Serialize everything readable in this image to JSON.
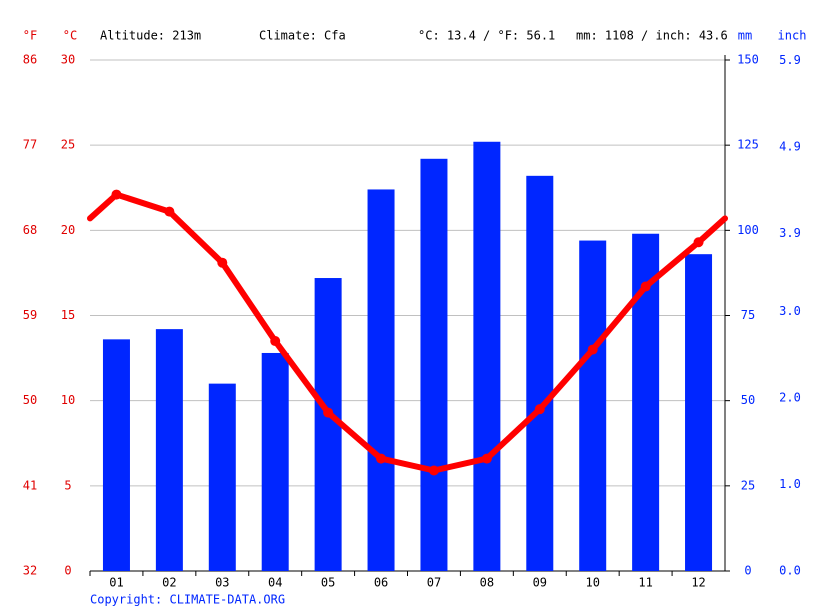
{
  "chart_data": {
    "type": "bar-line",
    "header": [
      "Altitude: 213m",
      "Climate: Cfa",
      "°C: 13.4 / °F: 56.1",
      "mm: 1108 / inch: 43.6"
    ],
    "y_label": "°C",
    "y3_label": "°F",
    "y2_label": "mm",
    "y4_label": "inch",
    "categories": [
      "01",
      "02",
      "03",
      "04",
      "05",
      "06",
      "07",
      "08",
      "09",
      "10",
      "11",
      "12"
    ],
    "series": [
      {
        "type": "bar",
        "axis": "y2",
        "color": "#0026ff",
        "values": [
          68,
          71,
          55,
          64,
          86,
          112,
          121,
          126,
          116,
          97,
          99,
          93
        ]
      },
      {
        "type": "line",
        "axis": "y",
        "color": "#ff0000",
        "values": [
          22.1,
          21.1,
          18.1,
          13.5,
          9.3,
          6.6,
          5.9,
          6.6,
          9.5,
          13.0,
          16.7,
          19.3
        ]
      }
    ],
    "ylim": [
      0,
      30
    ],
    "yticks": [
      0,
      5,
      10,
      15,
      20,
      25,
      30
    ],
    "y3lim": [
      32,
      86
    ],
    "y3ticks": [
      32,
      41,
      50,
      59,
      68,
      77,
      86
    ],
    "y2lim": [
      0,
      150
    ],
    "y2ticks": [
      0,
      25,
      50,
      75,
      100,
      125,
      150
    ],
    "y4lim": [
      0,
      5.906
    ],
    "y4ticks": [
      {
        "value": 0,
        "label": "0.0"
      },
      {
        "value": 1,
        "label": "1.0"
      },
      {
        "value": 2,
        "label": "2.0"
      },
      {
        "value": 3,
        "label": "3.0"
      },
      3.9,
      4.9,
      5.9
    ],
    "grid": true,
    "footer": "Copyright: CLIMATE-DATA.ORG"
  }
}
